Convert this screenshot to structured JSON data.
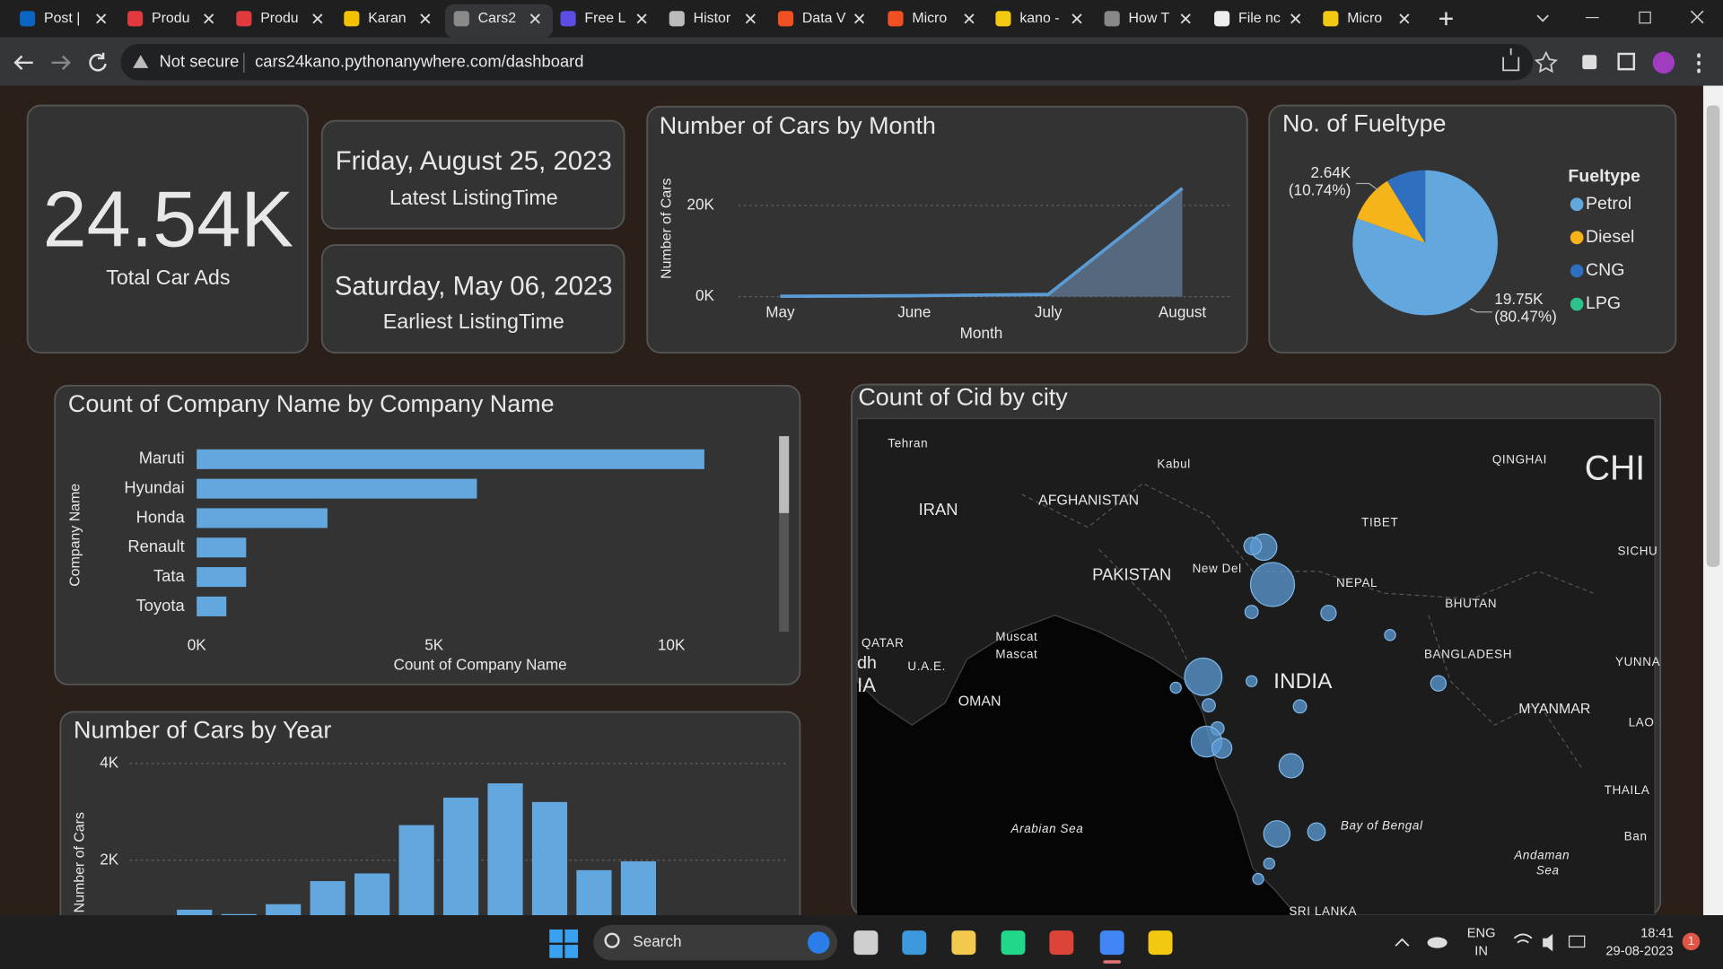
{
  "browser": {
    "tabs": [
      "Post |",
      "Produ",
      "Produ",
      "Karan",
      "Cars2",
      "Free L",
      "Histor",
      "Data V",
      "Micro",
      "kano -",
      "How T",
      "File nc",
      "Micro"
    ],
    "security": "Not secure",
    "url_host": "cars24kano.pythonanywhere.com",
    "url_path": "/dashboard"
  },
  "dashboard": {
    "total": {
      "value": "24.54K",
      "label": "Total Car Ads"
    },
    "latest": {
      "date": "Friday, August 25, 2023",
      "label": "Latest ListingTime"
    },
    "earliest": {
      "date": "Saturday, May 06, 2023",
      "label": "Earliest ListingTime"
    },
    "by_month": {
      "type": "line",
      "title": "Number of Cars by Month",
      "x_label": "Month",
      "y_label": "Number of Cars",
      "categories": [
        "May",
        "June",
        "July",
        "August"
      ],
      "values": [
        80,
        200,
        500,
        23760
      ],
      "color": "#5b9bd5",
      "ylim": [
        0,
        28000
      ],
      "yticks": [
        {
          "value": 0,
          "label": "0K"
        },
        {
          "value": 20000,
          "label": "20K"
        }
      ],
      "grid": true
    },
    "fuel": {
      "type": "pie",
      "title": "No. of Fueltype",
      "legend_title": "Fueltype",
      "categories": [
        "Petrol",
        "Diesel",
        "CNG",
        "LPG"
      ],
      "values": [
        19750,
        2640,
        2150,
        0
      ],
      "value_labels": [
        "19.75K",
        "2.64K",
        null,
        null
      ],
      "percent_labels": [
        "(80.47%)",
        "(10.74%)",
        null,
        null
      ],
      "colors": [
        "#62a7de",
        "#f4b41a",
        "#2f6fbf",
        "#2cc28a"
      ],
      "legend": "right"
    },
    "company": {
      "type": "hbar",
      "title": "Count of Company Name by Company Name",
      "x_label": "Count of Company Name",
      "y_label": "Company Name",
      "categories": [
        "Maruti",
        "Hyundai",
        "Honda",
        "Renault",
        "Tata",
        "Toyota"
      ],
      "values": [
        10694,
        5903,
        2755,
        1042,
        1042,
        625
      ],
      "color": "#62a7de",
      "xlim": [
        0,
        12000
      ],
      "xticks": [
        {
          "value": 0,
          "label": "0K"
        },
        {
          "value": 5000,
          "label": "5K"
        },
        {
          "value": 10000,
          "label": "10K"
        }
      ]
    },
    "by_year": {
      "type": "bar",
      "title": "Number of Cars by Year",
      "y_label": "Number of Cars",
      "categories": [
        null,
        null,
        null,
        null,
        null,
        null,
        null,
        null,
        null,
        null,
        null
      ],
      "values": [
        977,
        886,
        1091,
        1568,
        1727,
        2727,
        3295,
        3591,
        3205,
        1795,
        1977
      ],
      "color": "#62a7de",
      "ylim": [
        0,
        4300
      ],
      "yticks": [
        {
          "value": 2000,
          "label": "2K"
        },
        {
          "value": 4000,
          "label": "4K"
        }
      ],
      "grid": true
    },
    "map": {
      "title": "Count of Cid by city",
      "labels": [
        "Tehran",
        "Kabul",
        "IRAN",
        "AFGHANISTAN",
        "PAKISTAN",
        "New Del",
        "NEPAL",
        "TIBET",
        "QINGHAI",
        "CHI",
        "SICHU",
        "BHUTAN",
        "BANGLADESH",
        "INDIA",
        "YUNNA",
        "MYANMAR",
        "LAO",
        "QATAR",
        "U.A.E.",
        "Muscat",
        "Mascat",
        "OMAN",
        "Arabian Sea",
        "Bay of Bengal",
        "Andaman",
        "Sea",
        "THAILA",
        "Ban",
        "SRI LANKA",
        "dh",
        "IA"
      ]
    }
  },
  "taskbar": {
    "search": "Search",
    "lang": "ENG",
    "region": "IN",
    "time": "18:41",
    "date": "29-08-2023",
    "badge": "1"
  }
}
